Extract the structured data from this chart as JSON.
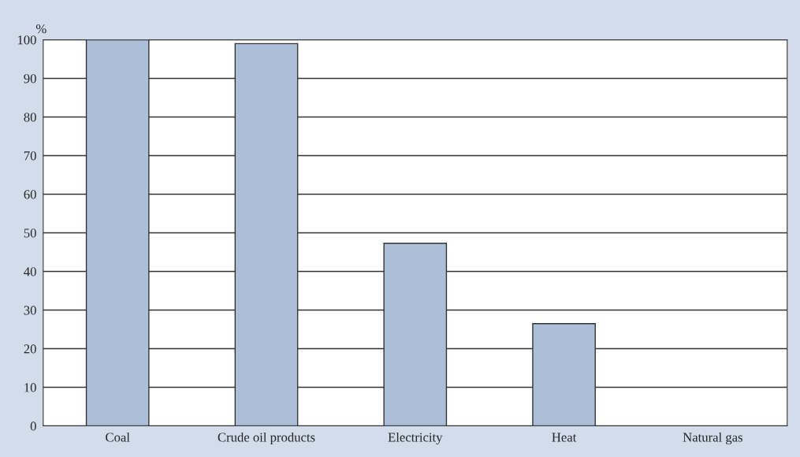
{
  "chart_data": {
    "type": "bar",
    "ylabel": "%",
    "categories": [
      "Coal",
      "Crude oil products",
      "Electricity",
      "Heat",
      "Natural gas"
    ],
    "values": [
      100,
      99,
      47.3,
      26.5,
      0
    ],
    "color": "#adbfd8",
    "ylim": [
      0,
      100
    ],
    "yticks": [
      0,
      10,
      20,
      30,
      40,
      50,
      60,
      70,
      80,
      90,
      100
    ],
    "grid": "y"
  }
}
